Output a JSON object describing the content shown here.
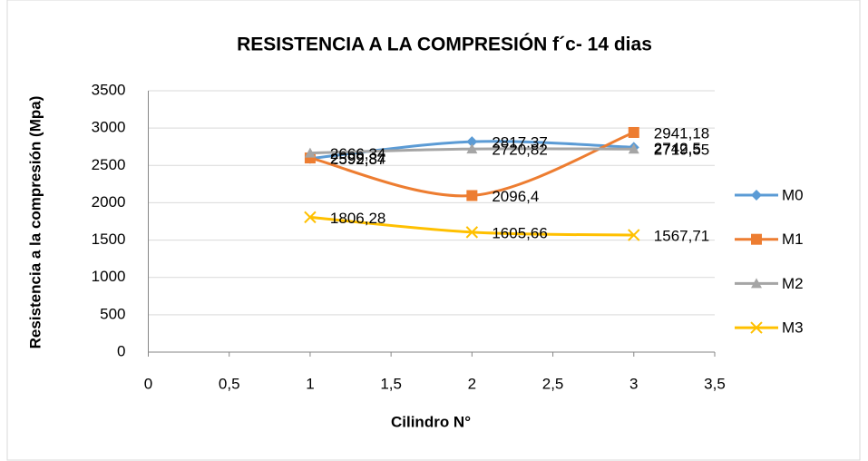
{
  "chart_data": {
    "type": "line",
    "title": "RESISTENCIA A LA COMPRESIÓN f´c- 14 dias",
    "x_label": "Cilindro N°",
    "y_label": "Resistencia a la compresión  (Mpa)",
    "x": [
      1,
      2,
      3
    ],
    "xlim": [
      0,
      3.5
    ],
    "xticks": [
      0,
      {
        "value": 0.5,
        "label": "0,5"
      },
      1,
      {
        "value": 1.5,
        "label": "1,5"
      },
      2,
      {
        "value": 2.5,
        "label": "2,5"
      },
      3,
      {
        "value": 3.5,
        "label": "3,5"
      }
    ],
    "ylim": [
      0,
      3500
    ],
    "yticks": [
      0,
      500,
      1000,
      1500,
      2000,
      2500,
      3000,
      3500
    ],
    "grid": true,
    "smooth": true,
    "legend": "right",
    "series": [
      {
        "name": "M0",
        "color": "#5b9bd5",
        "marker": "diamond",
        "values": [
          2592.37,
          2817.37,
          2742.5
        ],
        "value_labels": [
          "2592,37",
          "2817,37",
          "2742,5"
        ]
      },
      {
        "name": "M1",
        "color": "#ed7d31",
        "marker": "square",
        "values": [
          2599.84,
          2096.4,
          2941.18
        ],
        "value_labels": [
          "2599,84",
          "2096,4",
          "2941,18"
        ]
      },
      {
        "name": "M2",
        "color": "#a5a5a5",
        "marker": "triangle",
        "values": [
          2666.34,
          2720.82,
          2719.55
        ],
        "value_labels": [
          "2666,34",
          "2720,82",
          "2719,55"
        ]
      },
      {
        "name": "M3",
        "color": "#ffc000",
        "marker": "x",
        "values": [
          1806.28,
          1605.66,
          1567.71
        ],
        "value_labels": [
          "1806,28",
          "1605,66",
          "1567,71"
        ]
      }
    ]
  }
}
